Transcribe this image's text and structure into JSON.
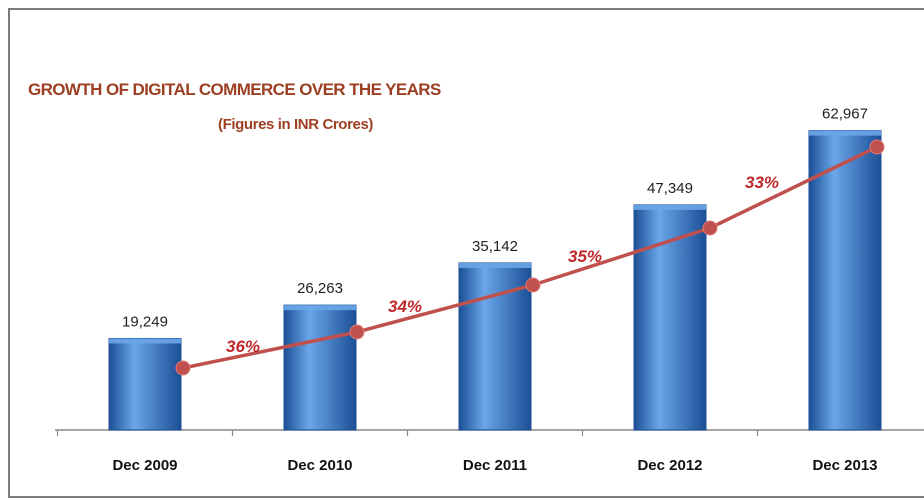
{
  "chart_data": {
    "type": "bar",
    "title": "GROWTH OF DIGITAL COMMERCE OVER THE YEARS",
    "subtitle": "(Figures in INR Crores)",
    "categories": [
      "Dec 2009",
      "Dec 2010",
      "Dec 2011",
      "Dec 2012",
      "Dec 2013"
    ],
    "values": [
      19249,
      26263,
      35142,
      47349,
      62967
    ],
    "value_labels": [
      "19,249",
      "26,263",
      "35,142",
      "47,349",
      "62,967"
    ],
    "growth_labels": [
      "36%",
      "34%",
      "35%",
      "33%"
    ],
    "ylim": [
      0,
      70000
    ],
    "grid": false,
    "legend": "none",
    "colors": {
      "bar": "#2f6fbf",
      "bar_light": "#6aa6e8",
      "bar_dark": "#1c4f96",
      "line": "#c0504d",
      "growth_text": "#c0282a",
      "title": "#9c3f22",
      "axis": "#888888"
    }
  }
}
